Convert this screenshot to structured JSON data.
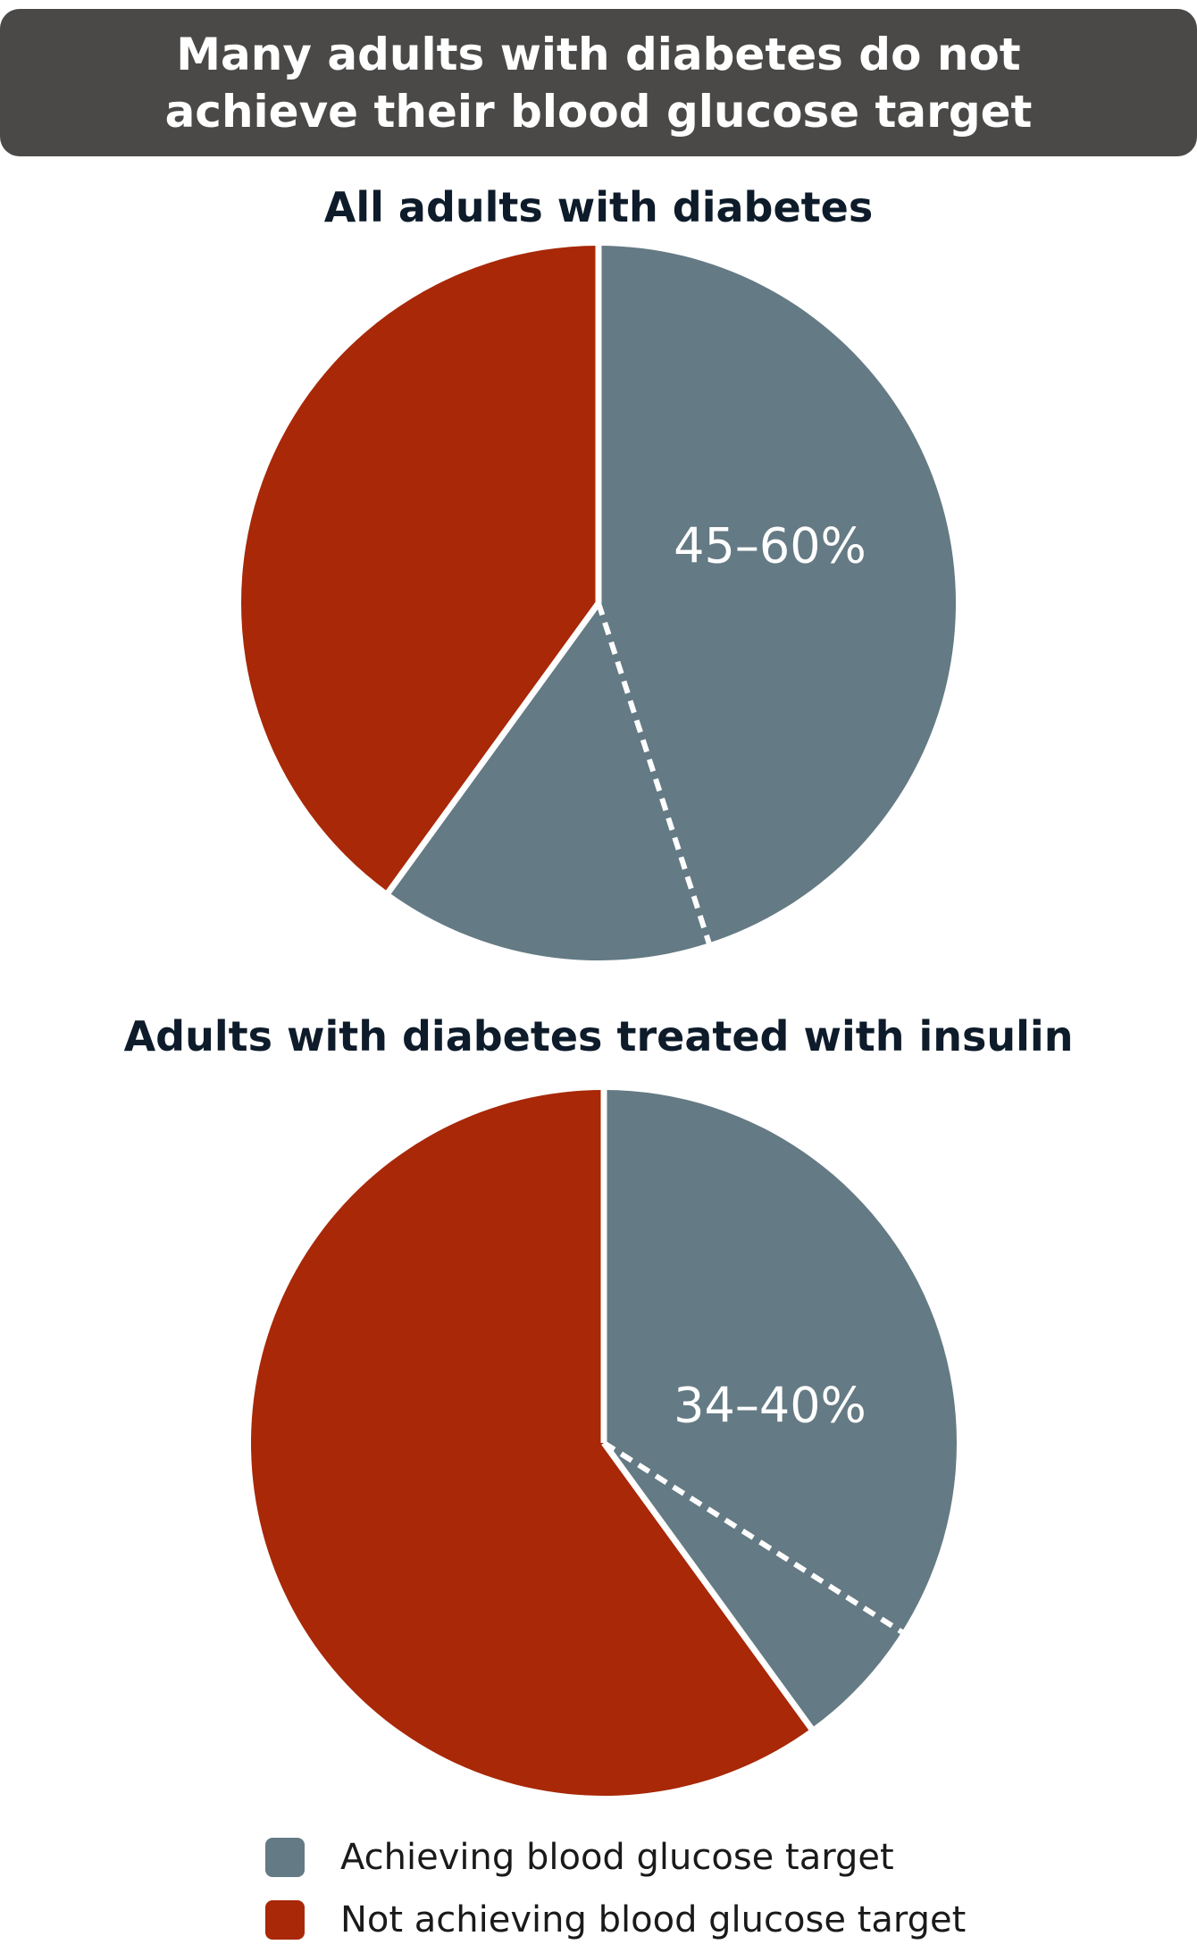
{
  "header": {
    "title_line1": "Many adults with diabetes do not",
    "title_line2": "achieve their blood glucose target"
  },
  "colors": {
    "achieving": "#647a84",
    "not_achieving": "#a82808",
    "divider": "#ffffff"
  },
  "legend": {
    "achieving_label": "Achieving blood glucose target",
    "not_achieving_label": "Not achieving blood glucose target"
  },
  "chart_data": [
    {
      "type": "pie",
      "title": "All adults with diabetes",
      "range_label": "45–60%",
      "range": [
        45,
        60
      ],
      "slices": [
        {
          "name": "Achieving blood glucose target",
          "value": 45,
          "segment": "lower"
        },
        {
          "name": "Achieving blood glucose target",
          "value": 15,
          "segment": "range"
        },
        {
          "name": "Not achieving blood glucose target",
          "value": 40
        }
      ]
    },
    {
      "type": "pie",
      "title": "Adults with diabetes treated with insulin",
      "range_label": "34–40%",
      "range": [
        34,
        40
      ],
      "slices": [
        {
          "name": "Achieving blood glucose target",
          "value": 34,
          "segment": "lower"
        },
        {
          "name": "Achieving blood glucose target",
          "value": 6,
          "segment": "range"
        },
        {
          "name": "Not achieving blood glucose target",
          "value": 60
        }
      ]
    }
  ]
}
